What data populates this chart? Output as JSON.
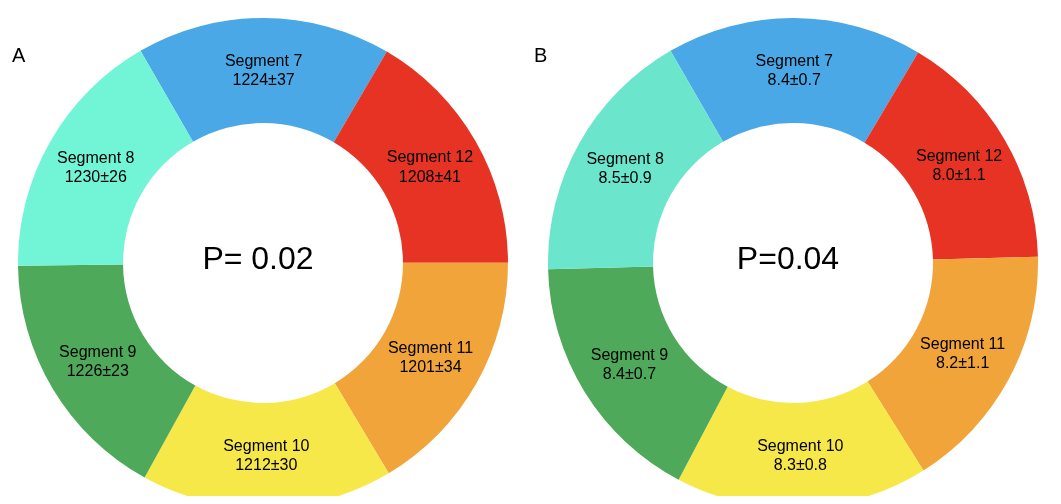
{
  "chart_data": [
    {
      "type": "donut",
      "title": "A",
      "categories": [
        "Segment 7",
        "Segment 12",
        "Segment 11",
        "Segment 10",
        "Segment 9",
        "Segment 8"
      ],
      "values": [
        1224,
        1208,
        1201,
        1212,
        1226,
        1230
      ],
      "value_labels": [
        "1224±37",
        "1208±41",
        "1201±34",
        "1212±30",
        "1226±23",
        "1230±26"
      ],
      "colors": [
        "#4aa8e6",
        "#e63323",
        "#f0a43a",
        "#f7e84a",
        "#4fa95a",
        "#72f5d6"
      ],
      "annotations": [
        "P= 0.02"
      ],
      "legend": false
    },
    {
      "type": "donut",
      "title": "B",
      "categories": [
        "Segment 7",
        "Segment 12",
        "Segment 11",
        "Segment 10",
        "Segment 9",
        "Segment 8"
      ],
      "values": [
        8.4,
        8.0,
        8.2,
        8.3,
        8.4,
        8.5
      ],
      "value_labels": [
        "8.4±0.7",
        "8.0±1.1",
        "8.2±1.1",
        "8.3±0.8",
        "8.4±0.7",
        "8.5±0.9"
      ],
      "colors": [
        "#4aa8e6",
        "#e63323",
        "#f0a43a",
        "#f7e84a",
        "#4fa95a",
        "#6be6cc"
      ],
      "annotations": [
        "P=0.04"
      ],
      "legend": false
    }
  ]
}
